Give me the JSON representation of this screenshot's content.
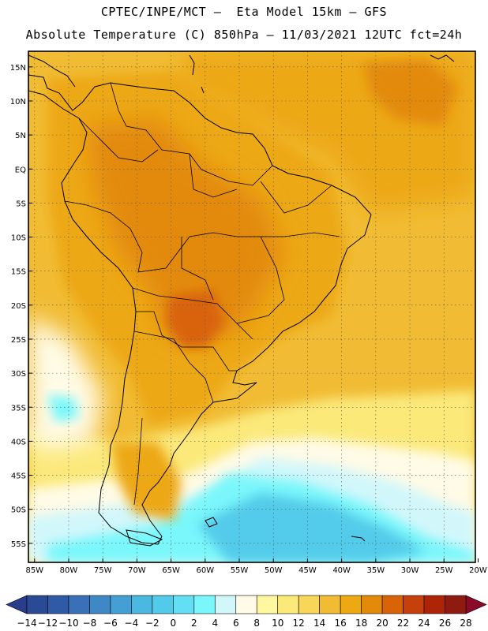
{
  "header": {
    "line1": "CPTEC/INPE/MCT –  Eta Model 15km – GFS",
    "line2": "Absolute Temperature (C) 850hPa – 11/03/2021 12UTC fct=24h"
  },
  "map": {
    "lat_labels": [
      "15N",
      "10N",
      "5N",
      "EQ",
      "5S",
      "10S",
      "15S",
      "20S",
      "25S",
      "30S",
      "35S",
      "40S",
      "45S",
      "50S",
      "55S"
    ],
    "lat_values": [
      15,
      10,
      5,
      0,
      -5,
      -10,
      -15,
      -20,
      -25,
      -30,
      -35,
      -40,
      -45,
      -50,
      -55
    ],
    "lon_labels": [
      "85W",
      "80W",
      "75W",
      "70W",
      "65W",
      "60W",
      "55W",
      "50W",
      "45W",
      "40W",
      "35W",
      "30W",
      "25W",
      "20W"
    ],
    "lon_values": [
      -85,
      -80,
      -75,
      -70,
      -65,
      -60,
      -55,
      -50,
      -45,
      -40,
      -35,
      -30,
      -25,
      -20
    ],
    "lat_range": [
      17.3,
      -57.8
    ],
    "lon_range": [
      -85.9,
      -20.4
    ]
  },
  "colorbar": {
    "labels": [
      "-14",
      "-12",
      "-10",
      "-8",
      "-6",
      "-4",
      "-2",
      "0",
      "2",
      "4",
      "6",
      "8",
      "10",
      "12",
      "14",
      "16",
      "18",
      "20",
      "22",
      "24",
      "26",
      "28"
    ],
    "under_color": "#2a3c8c",
    "over_color": "#8a0a2a",
    "colors": [
      "#2a4a96",
      "#2e5aa6",
      "#3a70b8",
      "#3f88c6",
      "#44a0d4",
      "#4ab8e0",
      "#52cbea",
      "#62dff2",
      "#7af7fb",
      "#d2f7fb",
      "#fffbe6",
      "#fff8a0",
      "#fbe97a",
      "#f7d658",
      "#f1bc34",
      "#eda812",
      "#e38a0a",
      "#d96408",
      "#c6400c",
      "#ad2406",
      "#8e1a10"
    ]
  }
}
